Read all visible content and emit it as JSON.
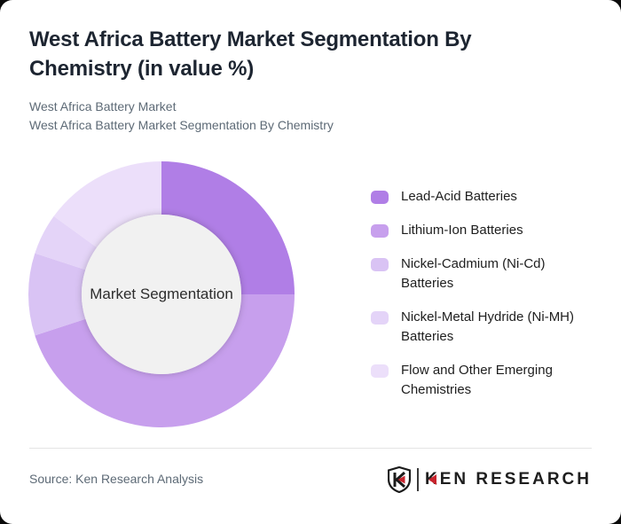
{
  "header": {
    "title": "West Africa Battery Market Segmentation By Chemistry (in value %)",
    "subtitle_line1": "West Africa Battery Market",
    "subtitle_line2": "West Africa Battery Market Segmentation By Chemistry"
  },
  "chart_data": {
    "type": "pie",
    "variant": "donut",
    "title": "West Africa Battery Market Segmentation By Chemistry (in value %)",
    "center_label": "Market Segmentation",
    "unit": "value %",
    "direction": "clockwise",
    "start_angle_deg": 0,
    "categories": [
      "Lead-Acid Batteries",
      "Lithium-Ion Batteries",
      "Nickel-Cadmium (Ni-Cd) Batteries",
      "Nickel-Metal Hydride (Ni-MH) Batteries",
      "Flow and Other Emerging Chemistries"
    ],
    "values": [
      25,
      45,
      10,
      5,
      15
    ],
    "colors": [
      "#b07ee6",
      "#c79fed",
      "#d9c3f4",
      "#e4d4f8",
      "#ecdffa"
    ],
    "inner_radius_ratio": 0.6,
    "center_fill": "#f1f1f1",
    "legend_position": "right"
  },
  "legend": {
    "items": [
      {
        "line1": "Lead-Acid Batteries",
        "line2": ""
      },
      {
        "line1": "Lithium-Ion Batteries",
        "line2": ""
      },
      {
        "line1": "Nickel-Cadmium (Ni-Cd)",
        "line2": "Batteries"
      },
      {
        "line1": "Nickel-Metal Hydride (Ni-MH)",
        "line2": "Batteries"
      },
      {
        "line1": "Flow and Other Emerging",
        "line2": "Chemistries"
      }
    ]
  },
  "footer": {
    "source": "Source: Ken Research Analysis",
    "logo": {
      "brand_first_letter": "K",
      "brand_rest": "EN RESEARCH",
      "accent_color": "#c8232c",
      "shield_letter": "K"
    }
  }
}
